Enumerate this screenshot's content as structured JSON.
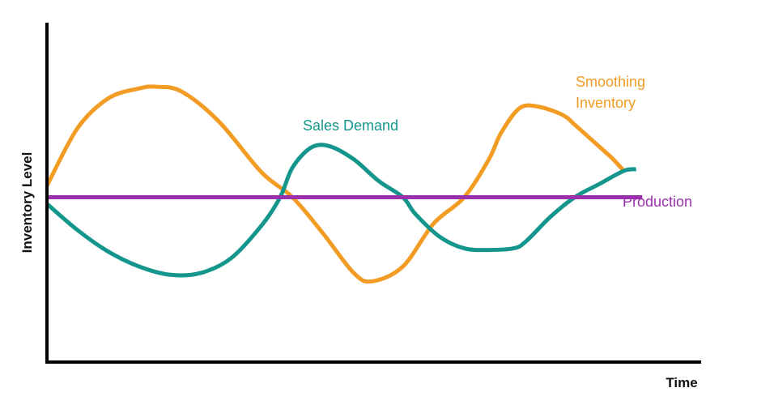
{
  "chart_data": {
    "type": "line",
    "xlabel": "Time",
    "ylabel": "Inventory Level",
    "xlim": [
      0,
      100
    ],
    "ylim": [
      -100,
      100
    ],
    "grid": false,
    "legend": "inline labels next to each series",
    "series": [
      {
        "name": "Smoothing Inventory",
        "color": "#f39c24",
        "x": [
          0,
          5,
          10,
          15,
          18,
          22,
          28,
          35,
          40,
          45,
          50,
          53,
          58,
          63,
          68,
          72,
          74,
          77,
          80,
          84,
          86,
          89,
          92,
          94
        ],
        "y": [
          7,
          42,
          60,
          66,
          67,
          64,
          46,
          15,
          0,
          -22,
          -46,
          -51,
          -42,
          -16,
          0,
          23,
          39,
          54,
          55,
          50,
          44,
          34,
          24,
          16
        ]
      },
      {
        "name": "Sales Demand",
        "color": "#14968c",
        "x": [
          0,
          5,
          10,
          15,
          20,
          25,
          30,
          35,
          38,
          40,
          43,
          46,
          50,
          54,
          58,
          60,
          64,
          68,
          72,
          76,
          78,
          82,
          86,
          90,
          94,
          96
        ],
        "y": [
          -4,
          -20,
          -33,
          -42,
          -47,
          -46,
          -37,
          -17,
          0,
          18,
          30,
          31,
          23,
          10,
          0,
          -10,
          -24,
          -31,
          -32,
          -31,
          -27,
          -12,
          0,
          8,
          16,
          17
        ]
      },
      {
        "name": "Production",
        "color": "#9b2fae",
        "x": [
          0,
          97
        ],
        "y": [
          0,
          0
        ]
      }
    ]
  }
}
